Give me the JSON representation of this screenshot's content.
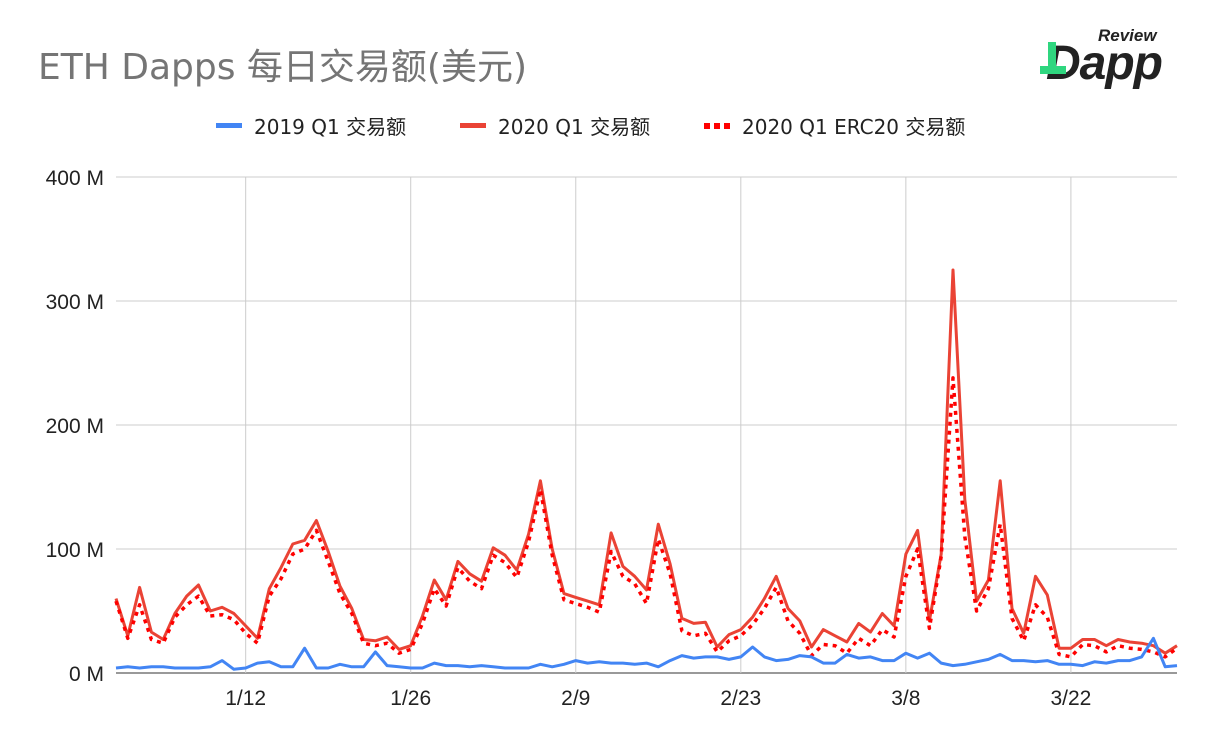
{
  "title": "ETH Dapps 每日交易额(美元)",
  "logo": {
    "top": "Review",
    "word": "Dapp"
  },
  "legend": [
    {
      "label": "2019 Q1 交易额",
      "color": "#4285f4",
      "style": "solid"
    },
    {
      "label": "2020 Q1 交易额",
      "color": "#ea4335",
      "style": "solid"
    },
    {
      "label": "2020 Q1 ERC20 交易额",
      "color": "#ff0000",
      "style": "dotted"
    }
  ],
  "chart_data": {
    "type": "line",
    "title": "ETH Dapps 每日交易额(美元)",
    "ylim": [
      0,
      400
    ],
    "yticks": [
      "0 M",
      "100 M",
      "200 M",
      "300 M",
      "400 M"
    ],
    "ytick_values": [
      0,
      100,
      200,
      300,
      400
    ],
    "xticks": [
      "1/12",
      "1/26",
      "2/9",
      "2/23",
      "3/8",
      "3/22"
    ],
    "xtick_index": [
      11,
      25,
      39,
      53,
      67,
      81
    ],
    "grid": true,
    "legend_position": "top",
    "x": [
      "1/1",
      "1/2",
      "1/3",
      "1/4",
      "1/5",
      "1/6",
      "1/7",
      "1/8",
      "1/9",
      "1/10",
      "1/11",
      "1/12",
      "1/13",
      "1/14",
      "1/15",
      "1/16",
      "1/17",
      "1/18",
      "1/19",
      "1/20",
      "1/21",
      "1/22",
      "1/23",
      "1/24",
      "1/25",
      "1/26",
      "1/27",
      "1/28",
      "1/29",
      "1/30",
      "1/31",
      "2/1",
      "2/2",
      "2/3",
      "2/4",
      "2/5",
      "2/6",
      "2/7",
      "2/8",
      "2/9",
      "2/10",
      "2/11",
      "2/12",
      "2/13",
      "2/14",
      "2/15",
      "2/16",
      "2/17",
      "2/18",
      "2/19",
      "2/20",
      "2/21",
      "2/22",
      "2/23",
      "2/24",
      "2/25",
      "2/26",
      "2/27",
      "2/28",
      "2/29",
      "3/1",
      "3/2",
      "3/3",
      "3/4",
      "3/5",
      "3/6",
      "3/7",
      "3/8",
      "3/9",
      "3/10",
      "3/11",
      "3/12",
      "3/13",
      "3/14",
      "3/15",
      "3/16",
      "3/17",
      "3/18",
      "3/19",
      "3/20",
      "3/21",
      "3/22",
      "3/23",
      "3/24",
      "3/25",
      "3/26",
      "3/27",
      "3/28",
      "3/29",
      "3/30",
      "3/31"
    ],
    "series": [
      {
        "name": "2019 Q1 交易额",
        "color": "#4285f4",
        "style": "solid",
        "values": [
          4,
          5,
          4,
          5,
          5,
          4,
          4,
          4,
          5,
          10,
          3,
          4,
          8,
          9,
          5,
          5,
          20,
          4,
          4,
          7,
          5,
          5,
          17,
          6,
          5,
          4,
          4,
          8,
          6,
          6,
          5,
          6,
          5,
          4,
          4,
          4,
          7,
          5,
          7,
          10,
          8,
          9,
          8,
          8,
          7,
          8,
          5,
          10,
          14,
          12,
          13,
          13,
          11,
          13,
          21,
          13,
          10,
          11,
          14,
          13,
          8,
          8,
          15,
          12,
          13,
          10,
          10,
          16,
          12,
          16,
          8,
          6,
          7,
          9,
          11,
          15,
          10,
          10,
          9,
          10,
          7,
          7,
          6,
          9,
          8,
          10,
          10,
          13,
          28,
          5,
          6
        ]
      },
      {
        "name": "2020 Q1 交易额",
        "color": "#ea4335",
        "style": "solid",
        "values": [
          60,
          30,
          69,
          33,
          27,
          48,
          62,
          71,
          50,
          53,
          48,
          38,
          28,
          68,
          85,
          104,
          107,
          123,
          98,
          70,
          52,
          27,
          26,
          29,
          19,
          22,
          46,
          75,
          59,
          90,
          80,
          74,
          101,
          95,
          83,
          112,
          155,
          100,
          64,
          61,
          58,
          55,
          113,
          86,
          78,
          67,
          120,
          88,
          44,
          40,
          41,
          21,
          31,
          35,
          45,
          60,
          78,
          52,
          42,
          21,
          35,
          30,
          25,
          40,
          33,
          48,
          38,
          96,
          115,
          42,
          96,
          325,
          140,
          58,
          75,
          155,
          52,
          32,
          78,
          63,
          20,
          20,
          27,
          27,
          22,
          27,
          25,
          24,
          22,
          16,
          22
        ]
      },
      {
        "name": "2020 Q1 ERC20 交易额",
        "color": "#ff0000",
        "style": "dotted",
        "values": [
          58,
          28,
          55,
          27,
          24,
          45,
          55,
          62,
          46,
          47,
          43,
          32,
          24,
          62,
          76,
          96,
          100,
          115,
          90,
          64,
          48,
          24,
          22,
          24,
          16,
          19,
          40,
          68,
          54,
          85,
          74,
          68,
          95,
          89,
          77,
          106,
          148,
          95,
          59,
          56,
          53,
          49,
          98,
          78,
          72,
          56,
          108,
          80,
          34,
          30,
          32,
          17,
          26,
          30,
          39,
          52,
          69,
          42,
          32,
          14,
          23,
          22,
          16,
          28,
          22,
          35,
          29,
          78,
          100,
          36,
          94,
          238,
          110,
          50,
          68,
          120,
          44,
          26,
          55,
          45,
          15,
          13,
          23,
          22,
          17,
          22,
          20,
          19,
          17,
          13,
          20
        ]
      }
    ]
  }
}
